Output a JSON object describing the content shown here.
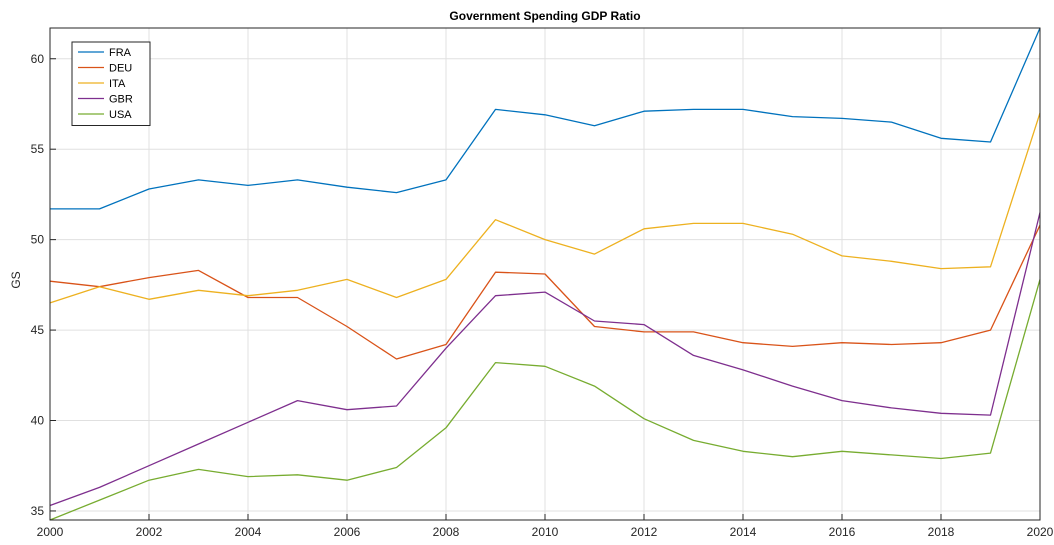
{
  "chart_data": {
    "type": "line",
    "title": "Government Spending GDP Ratio",
    "xlabel": "",
    "ylabel": "GS",
    "xlim": [
      2000,
      2020
    ],
    "ylim": [
      34.5,
      61.7
    ],
    "xticks": [
      2000,
      2002,
      2004,
      2006,
      2008,
      2010,
      2012,
      2014,
      2016,
      2018,
      2020
    ],
    "yticks": [
      35,
      40,
      45,
      50,
      55,
      60
    ],
    "grid": true,
    "legend_position": "top-left",
    "x": [
      2000,
      2001,
      2002,
      2003,
      2004,
      2005,
      2006,
      2007,
      2008,
      2009,
      2010,
      2011,
      2012,
      2013,
      2014,
      2015,
      2016,
      2017,
      2018,
      2019,
      2020
    ],
    "series": [
      {
        "name": "FRA",
        "color": "#0072BD",
        "values": [
          51.7,
          51.7,
          52.8,
          53.3,
          53.0,
          53.3,
          52.9,
          52.6,
          53.3,
          57.2,
          56.9,
          56.3,
          57.1,
          57.2,
          57.2,
          56.8,
          56.7,
          56.5,
          55.6,
          55.4,
          61.7
        ]
      },
      {
        "name": "DEU",
        "color": "#D95319",
        "values": [
          47.7,
          47.4,
          47.9,
          48.3,
          46.8,
          46.8,
          45.2,
          43.4,
          44.2,
          48.2,
          48.1,
          45.2,
          44.9,
          44.9,
          44.3,
          44.1,
          44.3,
          44.2,
          44.3,
          45.0,
          50.8
        ]
      },
      {
        "name": "ITA",
        "color": "#EDB120",
        "values": [
          46.5,
          47.4,
          46.7,
          47.2,
          46.9,
          47.2,
          47.8,
          46.8,
          47.8,
          51.1,
          50.0,
          49.2,
          50.6,
          50.9,
          50.9,
          50.3,
          49.1,
          48.8,
          48.4,
          48.5,
          57.0
        ]
      },
      {
        "name": "GBR",
        "color": "#7E2F8E",
        "values": [
          35.3,
          36.3,
          37.5,
          38.7,
          39.9,
          41.1,
          40.6,
          40.8,
          44.0,
          46.9,
          47.1,
          45.5,
          45.3,
          43.6,
          42.8,
          41.9,
          41.1,
          40.7,
          40.4,
          40.3,
          51.5
        ]
      },
      {
        "name": "USA",
        "color": "#77AC30",
        "values": [
          34.5,
          35.6,
          36.7,
          37.3,
          36.9,
          37.0,
          36.7,
          37.4,
          39.6,
          43.2,
          43.0,
          41.9,
          40.1,
          38.9,
          38.3,
          38.0,
          38.3,
          38.1,
          37.9,
          38.2,
          47.8
        ]
      }
    ]
  }
}
